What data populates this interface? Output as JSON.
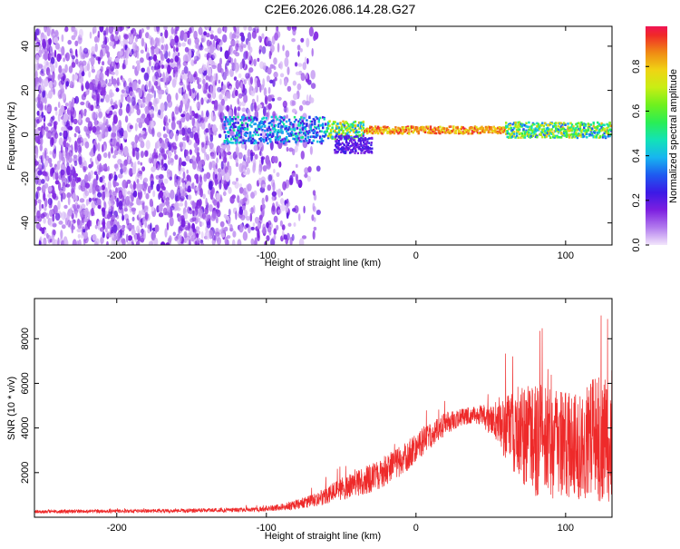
{
  "title": "C2E6.2026.086.14.28.G27",
  "chart_data": [
    {
      "type": "heatmap",
      "title": "C2E6.2026.086.14.28.G27",
      "xlabel": "Height of straight line (km)",
      "ylabel": "Frequency (Hz)",
      "xlim": [
        -255,
        131
      ],
      "ylim": [
        -50,
        49
      ],
      "xticks": [
        -200,
        -100,
        0,
        100
      ],
      "yticks": [
        40,
        20,
        0,
        -20,
        -40
      ],
      "colorbar": {
        "label": "Normalized spectral amplitude",
        "range": [
          0,
          0.98
        ],
        "ticks": [
          0.0,
          0.2,
          0.4,
          0.6,
          0.8
        ]
      },
      "description_data": {
        "noise_region_x": [
          -255,
          -75
        ],
        "signal_start_x": -128,
        "signal_center_freq_hz": 2,
        "strong_signal_x": [
          -35,
          60
        ]
      }
    },
    {
      "type": "line",
      "xlabel": "Height of straight line (km)",
      "ylabel": "SNR (10 * v/v)",
      "xlim": [
        -255,
        131
      ],
      "ylim": [
        0,
        9800
      ],
      "xticks": [
        -200,
        -100,
        0,
        100
      ],
      "yticks": [
        2000,
        4000,
        6000,
        8000
      ],
      "color": "#ee2a2a",
      "envelope": {
        "x": [
          -255,
          -200,
          -150,
          -110,
          -90,
          -70,
          -55,
          -40,
          -25,
          -10,
          0,
          10,
          20,
          30,
          40,
          50,
          60,
          70,
          80,
          90,
          100,
          110,
          120,
          131
        ],
        "mean": [
          250,
          270,
          300,
          330,
          450,
          700,
          1100,
          1500,
          1900,
          2500,
          3100,
          3700,
          4200,
          4500,
          4600,
          4400,
          4100,
          3800,
          3500,
          3300,
          3200,
          3300,
          3500,
          3600
        ],
        "spread": [
          80,
          80,
          90,
          100,
          150,
          300,
          450,
          600,
          700,
          700,
          650,
          600,
          500,
          400,
          400,
          700,
          1500,
          2300,
          2600,
          2500,
          2400,
          2500,
          2800,
          3000
        ]
      }
    }
  ]
}
